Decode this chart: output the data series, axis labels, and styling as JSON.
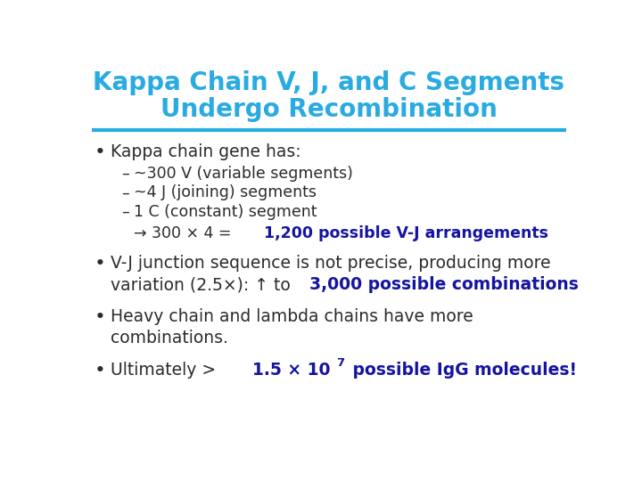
{
  "title_line1": "Kappa Chain V, J, and C Segments",
  "title_line2": "Undergo Recombination",
  "title_color": "#29ABE2",
  "title_fontsize": 20,
  "divider_color": "#29ABE2",
  "background_color": "#FFFFFF",
  "black": "#2B2B2B",
  "blue": "#1414A0",
  "bullet1": "Kappa chain gene has:",
  "sub1": "~300 V (variable segments)",
  "sub2": "~4 J (joining) segments",
  "sub3": "1 C (constant) segment",
  "arrow_pre": "→ 300 × 4 = ",
  "arrow_highlight": "1,200 possible V-J arrangements",
  "bullet2_line1": "V-J junction sequence is not precise, producing more",
  "bullet2_line2_pre": "variation (2.5×): ↑ to ",
  "bullet2_highlight": "3,000 possible combinations",
  "bullet3_line1": "Heavy chain and lambda chains have more",
  "bullet3_line2": "combinations.",
  "bullet4_pre": "Ultimately > ",
  "bullet4_num": "1.5 × 10",
  "bullet4_super": "7",
  "bullet4_post": " possible IgG molecules!",
  "body_fontsize": 13.5,
  "sub_fontsize": 12.5
}
